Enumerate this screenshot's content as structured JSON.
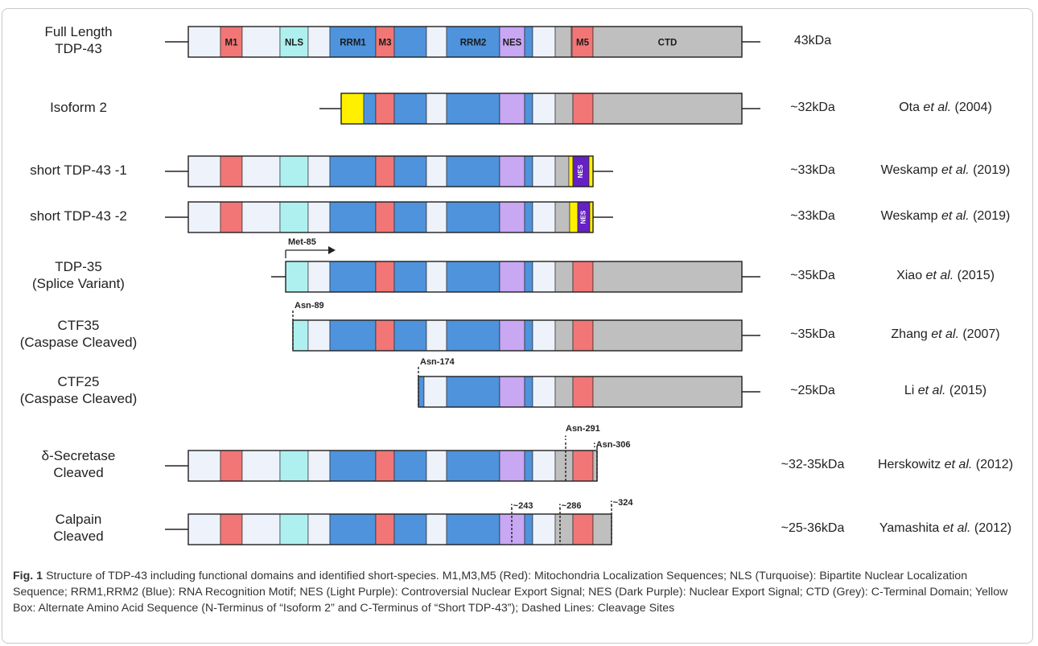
{
  "palette": {
    "white": "#eef2fb",
    "red": "#f27676",
    "turquoise": "#aef0f0",
    "blue": "#4e93dc",
    "lightPurple": "#c8a7f3",
    "grey": "#bfbfbf",
    "yellow": "#fff000",
    "darkPurple": "#6621c4",
    "outline": "#1f1f1f"
  },
  "rows": [
    {
      "name": "Full Length\nTDP-43",
      "size": "43kDa",
      "ref": null,
      "segments": [
        [
          "white",
          234,
          274
        ],
        [
          "red",
          274,
          301
        ],
        [
          "white",
          301,
          348
        ],
        [
          "turquoise",
          348,
          383
        ],
        [
          "white",
          383,
          410
        ],
        [
          "blue",
          410,
          467
        ],
        [
          "red",
          467,
          490
        ],
        [
          "blue",
          490,
          530
        ],
        [
          "white",
          530,
          555
        ],
        [
          "blue",
          555,
          621
        ],
        [
          "lightPurple",
          621,
          652
        ],
        [
          "blue",
          652,
          662
        ],
        [
          "white",
          662,
          690
        ],
        [
          "grey",
          690,
          710
        ],
        [
          "white",
          710,
          711
        ],
        [
          "red",
          711,
          737
        ],
        [
          "grey",
          737,
          922
        ]
      ],
      "labels": [
        [
          "M1",
          274,
          301
        ],
        [
          "NLS",
          348,
          383
        ],
        [
          "RRM1",
          410,
          467
        ],
        [
          "M3",
          467,
          490
        ],
        [
          "RRM2",
          555,
          621
        ],
        [
          "NES",
          621,
          652
        ],
        [
          "M5",
          711,
          737
        ],
        [
          "CTD",
          737,
          922
        ]
      ]
    },
    {
      "name": "Isoform 2",
      "size": "~32kDa",
      "ref": {
        "author": "Ota",
        "etal": "et al.",
        "year": "(2004)"
      },
      "segments": [
        [
          "yellow",
          424,
          452
        ],
        [
          "blue",
          452,
          467
        ],
        [
          "red",
          467,
          490
        ],
        [
          "blue",
          490,
          530
        ],
        [
          "white",
          530,
          555
        ],
        [
          "blue",
          555,
          621
        ],
        [
          "lightPurple",
          621,
          652
        ],
        [
          "blue",
          652,
          662
        ],
        [
          "white",
          662,
          690
        ],
        [
          "grey",
          690,
          712
        ],
        [
          "red",
          712,
          737
        ],
        [
          "grey",
          737,
          922
        ]
      ]
    },
    {
      "name": "short TDP-43 -1",
      "size": "~33kDa",
      "ref": {
        "author": "Weskamp",
        "etal": "et al.",
        "year": "(2019)"
      },
      "segments": [
        [
          "white",
          234,
          274
        ],
        [
          "red",
          274,
          301
        ],
        [
          "white",
          301,
          348
        ],
        [
          "turquoise",
          348,
          383
        ],
        [
          "white",
          383,
          410
        ],
        [
          "blue",
          410,
          467
        ],
        [
          "red",
          467,
          490
        ],
        [
          "blue",
          490,
          530
        ],
        [
          "white",
          530,
          555
        ],
        [
          "blue",
          555,
          621
        ],
        [
          "lightPurple",
          621,
          652
        ],
        [
          "blue",
          652,
          662
        ],
        [
          "white",
          662,
          690
        ],
        [
          "grey",
          690,
          707
        ],
        [
          "yellow",
          707,
          712
        ],
        [
          "darkPurple",
          712,
          732
        ],
        [
          "yellow",
          732,
          737
        ]
      ],
      "nesBox": [
        712,
        732
      ]
    },
    {
      "name": "short TDP-43 -2",
      "size": "~33kDa",
      "ref": {
        "author": "Weskamp",
        "etal": "et al.",
        "year": "(2019)"
      },
      "segments": [
        [
          "white",
          234,
          274
        ],
        [
          "red",
          274,
          301
        ],
        [
          "white",
          301,
          348
        ],
        [
          "turquoise",
          348,
          383
        ],
        [
          "white",
          383,
          410
        ],
        [
          "blue",
          410,
          467
        ],
        [
          "red",
          467,
          490
        ],
        [
          "blue",
          490,
          530
        ],
        [
          "white",
          530,
          555
        ],
        [
          "blue",
          555,
          621
        ],
        [
          "lightPurple",
          621,
          652
        ],
        [
          "blue",
          652,
          662
        ],
        [
          "white",
          662,
          690
        ],
        [
          "grey",
          690,
          708
        ],
        [
          "yellow",
          708,
          718
        ],
        [
          "darkPurple",
          718,
          733
        ],
        [
          "yellow",
          733,
          737
        ]
      ],
      "nesBox": [
        718,
        733
      ]
    },
    {
      "name": "TDP-35\n(Splice Variant)",
      "size": "~35kDa",
      "ref": {
        "author": "Xiao",
        "etal": "et al.",
        "year": "(2015)"
      },
      "segments": [
        [
          "turquoise",
          355,
          383
        ],
        [
          "white",
          383,
          410
        ],
        [
          "blue",
          410,
          467
        ],
        [
          "red",
          467,
          490
        ],
        [
          "blue",
          490,
          530
        ],
        [
          "white",
          530,
          555
        ],
        [
          "blue",
          555,
          621
        ],
        [
          "lightPurple",
          621,
          652
        ],
        [
          "blue",
          652,
          662
        ],
        [
          "white",
          662,
          690
        ],
        [
          "grey",
          690,
          712
        ],
        [
          "red",
          712,
          737
        ],
        [
          "grey",
          737,
          922
        ]
      ],
      "marker": {
        "label": "Met-85",
        "type": "arrow"
      }
    },
    {
      "name": "CTF35\n(Caspase Cleaved)",
      "size": "~35kDa",
      "ref": {
        "author": "Zhang",
        "etal": "et al.",
        "year": "(2007)"
      },
      "segments": [
        [
          "turquoise",
          364,
          383
        ],
        [
          "white",
          383,
          410
        ],
        [
          "blue",
          410,
          467
        ],
        [
          "red",
          467,
          490
        ],
        [
          "blue",
          490,
          530
        ],
        [
          "white",
          530,
          555
        ],
        [
          "blue",
          555,
          621
        ],
        [
          "lightPurple",
          621,
          652
        ],
        [
          "blue",
          652,
          662
        ],
        [
          "white",
          662,
          690
        ],
        [
          "grey",
          690,
          712
        ],
        [
          "red",
          712,
          737
        ],
        [
          "grey",
          737,
          922
        ]
      ],
      "marker": {
        "label": "Asn-89",
        "type": "cut"
      }
    },
    {
      "name": "CTF25\n(Caspase Cleaved)",
      "size": "~25kDa",
      "ref": {
        "author": "Li",
        "etal": "et al.",
        "year": "(2015)"
      },
      "segments": [
        [
          "blue",
          520,
          527
        ],
        [
          "white",
          527,
          555
        ],
        [
          "blue",
          555,
          621
        ],
        [
          "lightPurple",
          621,
          652
        ],
        [
          "blue",
          652,
          662
        ],
        [
          "white",
          662,
          690
        ],
        [
          "grey",
          690,
          712
        ],
        [
          "red",
          712,
          737
        ],
        [
          "grey",
          737,
          922
        ]
      ],
      "marker": {
        "label": "Asn-174",
        "type": "cut"
      }
    },
    {
      "name": "δ-Secretase\nCleaved",
      "size": "~32-35kDa",
      "ref": {
        "author": "Herskowitz",
        "etal": "et al.",
        "year": "(2012)"
      },
      "segments": [
        [
          "white",
          234,
          274
        ],
        [
          "red",
          274,
          301
        ],
        [
          "white",
          301,
          348
        ],
        [
          "turquoise",
          348,
          383
        ],
        [
          "white",
          383,
          410
        ],
        [
          "blue",
          410,
          467
        ],
        [
          "red",
          467,
          490
        ],
        [
          "blue",
          490,
          530
        ],
        [
          "white",
          530,
          555
        ],
        [
          "blue",
          555,
          621
        ],
        [
          "lightPurple",
          621,
          652
        ],
        [
          "blue",
          652,
          662
        ],
        [
          "white",
          662,
          690
        ],
        [
          "grey",
          690,
          712
        ],
        [
          "red",
          712,
          737
        ],
        [
          "grey",
          737,
          742
        ]
      ],
      "cuts": [
        "Asn-291",
        "Asn-306"
      ]
    },
    {
      "name": "Calpain\nCleaved",
      "size": "~25-36kDa",
      "ref": {
        "author": "Yamashita",
        "etal": "et al.",
        "year": "(2012)"
      },
      "segments": [
        [
          "white",
          234,
          274
        ],
        [
          "red",
          274,
          301
        ],
        [
          "white",
          301,
          348
        ],
        [
          "turquoise",
          348,
          383
        ],
        [
          "white",
          383,
          410
        ],
        [
          "blue",
          410,
          467
        ],
        [
          "red",
          467,
          490
        ],
        [
          "blue",
          490,
          530
        ],
        [
          "white",
          530,
          555
        ],
        [
          "blue",
          555,
          621
        ],
        [
          "lightPurple",
          621,
          652
        ],
        [
          "blue",
          652,
          662
        ],
        [
          "white",
          662,
          690
        ],
        [
          "grey",
          690,
          712
        ],
        [
          "red",
          712,
          737
        ],
        [
          "grey",
          737,
          760
        ]
      ],
      "cuts": [
        "~243",
        "~286",
        "~324"
      ]
    }
  ],
  "nesTag": "NES",
  "caption": {
    "label": "Fig. 1",
    "text": "Structure of TDP-43 including functional domains and identified short-species. M1,M3,M5 (Red): Mitochondria Localization Sequences; NLS (Turquoise): Bipartite Nuclear Localization Sequence; RRM1,RRM2 (Blue): RNA Recognition Motif; NES (Light Purple): Controversial Nuclear Export Signal; NES (Dark Purple): Nuclear Export Signal; CTD (Grey): C-Terminal Domain; Yellow Box: Alternate Amino Acid Sequence (N-Terminus of “Isoform 2” and C-Terminus of “Short TDP-43”); Dashed Lines: Cleavage Sites"
  }
}
